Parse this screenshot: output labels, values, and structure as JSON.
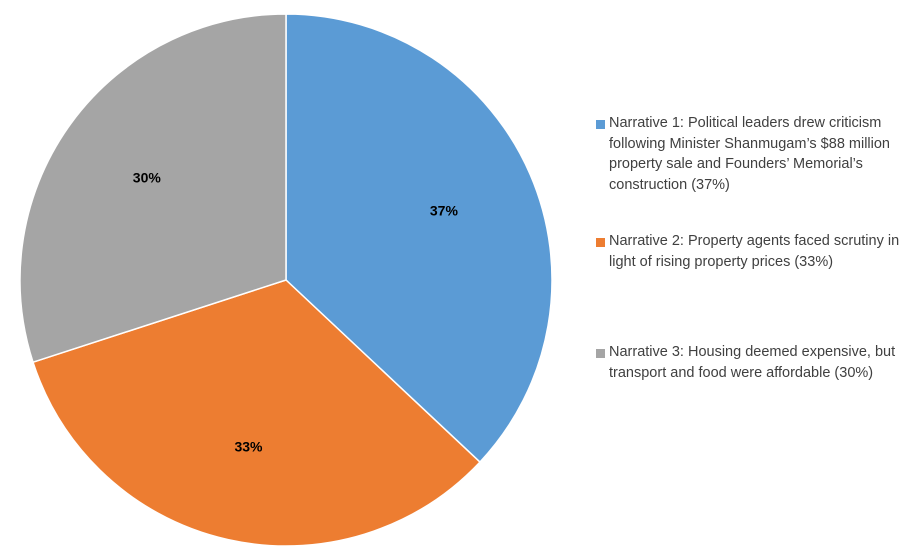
{
  "chart_data": {
    "type": "pie",
    "slices": [
      {
        "name": "Narrative 1: Political leaders drew criticism following Minister Shanmugam’s $88 million property sale and Founders’ Memorial’s construction",
        "legend_label": "Narrative 1: Political leaders drew criticism following Minister Shanmugam’s $88 million property sale and Founders’ Memorial’s construction (37%)",
        "value": 37,
        "label": "37%",
        "color": "#5B9BD5"
      },
      {
        "name": "Narrative 2: Property agents faced scrutiny in light of rising property prices",
        "legend_label": "Narrative 2: Property agents faced scrutiny in light of rising property prices (33%)",
        "value": 33,
        "label": "33%",
        "color": "#ED7D31"
      },
      {
        "name": "Narrative 3: Housing deemed expensive, but transport and food were affordable",
        "legend_label": "Narrative 3: Housing deemed expensive, but transport and food were affordable (30%)",
        "value": 30,
        "label": "30%",
        "color": "#A5A5A5"
      }
    ],
    "legend_position": "right",
    "start_angle": "12 o'clock",
    "direction": "clockwise"
  }
}
